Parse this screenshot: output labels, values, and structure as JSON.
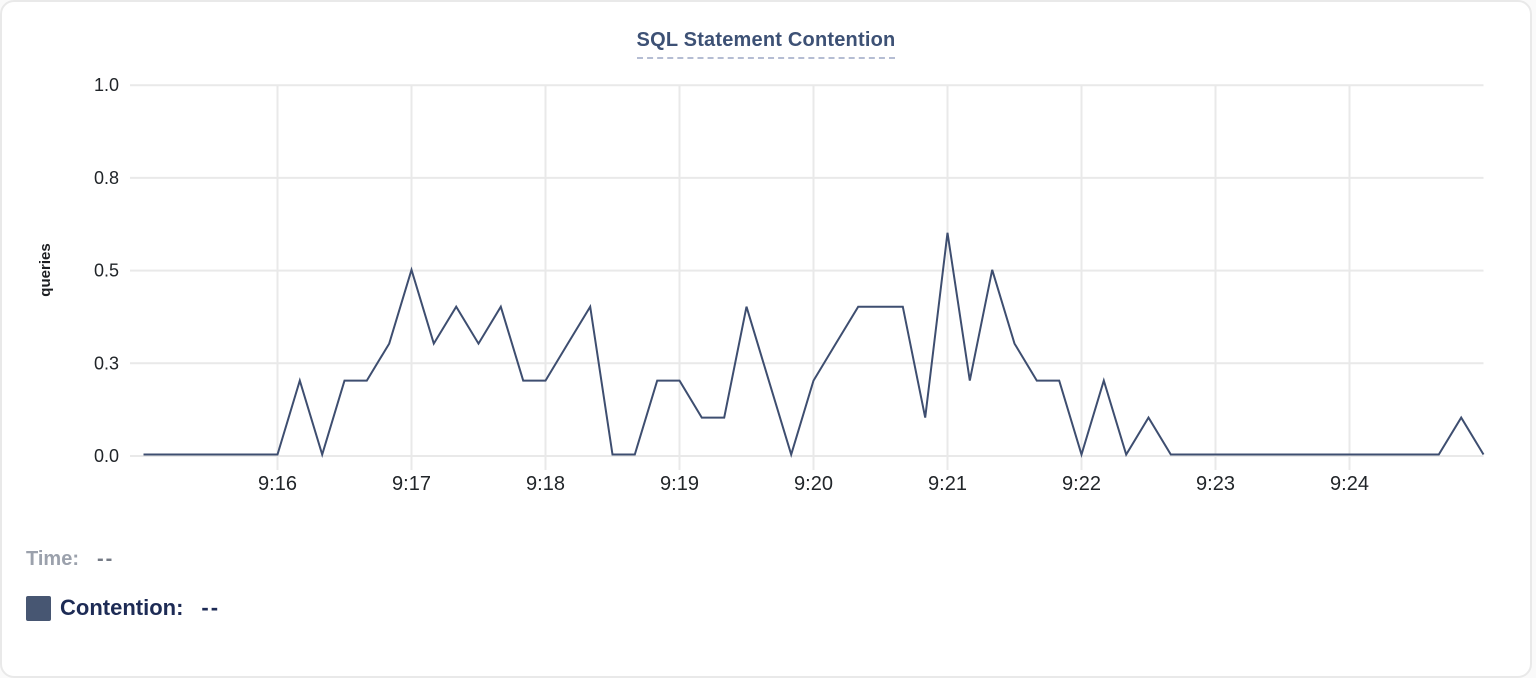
{
  "legend": {
    "time_label": "Time:",
    "time_value": "--",
    "contention_label": "Contention:",
    "contention_value": "--"
  },
  "colors": {
    "line": "#3e4e70",
    "swatch": "#475672",
    "grid": "#e9e9e9",
    "title": "#3d5175",
    "axis_text": "#212529",
    "y_axis_title_text": "#1c1e21",
    "time_label_text": "#9ba1ac",
    "contention_label_text": "#1d2b55"
  },
  "chart_data": {
    "type": "line",
    "title": "SQL Statement Contention",
    "ylabel": "queries",
    "xlabel": "",
    "ylim": [
      0,
      1
    ],
    "grid": true,
    "legend_position": "bottom-left",
    "x_start": "9:15:00",
    "x_end": "9:25:00",
    "sample_interval_seconds": 10,
    "y_ticks": [
      {
        "value": 0,
        "label": "0.0"
      },
      {
        "value": 0.25,
        "label": "0.3"
      },
      {
        "value": 0.5,
        "label": "0.5"
      },
      {
        "value": 0.75,
        "label": "0.8"
      },
      {
        "value": 1,
        "label": "1.0"
      }
    ],
    "x_ticks": [
      "9:16",
      "9:17",
      "9:18",
      "9:19",
      "9:20",
      "9:21",
      "9:22",
      "9:23",
      "9:24"
    ],
    "times": [
      "9:15:00",
      "9:15:10",
      "9:15:20",
      "9:15:30",
      "9:15:40",
      "9:15:50",
      "9:16:00",
      "9:16:10",
      "9:16:20",
      "9:16:30",
      "9:16:40",
      "9:16:50",
      "9:17:00",
      "9:17:10",
      "9:17:20",
      "9:17:30",
      "9:17:40",
      "9:17:50",
      "9:18:00",
      "9:18:10",
      "9:18:20",
      "9:18:30",
      "9:18:40",
      "9:18:50",
      "9:19:00",
      "9:19:10",
      "9:19:20",
      "9:19:30",
      "9:19:40",
      "9:19:50",
      "9:20:00",
      "9:20:10",
      "9:20:20",
      "9:20:30",
      "9:20:40",
      "9:20:50",
      "9:21:00",
      "9:21:10",
      "9:21:20",
      "9:21:30",
      "9:21:40",
      "9:21:50",
      "9:22:00",
      "9:22:10",
      "9:22:20",
      "9:22:30",
      "9:22:40",
      "9:22:50",
      "9:23:00",
      "9:23:10",
      "9:23:20",
      "9:23:30",
      "9:23:40",
      "9:23:50",
      "9:24:00",
      "9:24:10",
      "9:24:20",
      "9:24:30",
      "9:24:40",
      "9:24:50",
      "9:25:00"
    ],
    "series": [
      {
        "name": "Contention",
        "color": "#3e4e70",
        "values": [
          0,
          0,
          0,
          0,
          0,
          0,
          0,
          0.2,
          0,
          0.2,
          0.2,
          0.3,
          0.5,
          0.3,
          0.4,
          0.3,
          0.4,
          0.2,
          0.2,
          0.3,
          0.4,
          0,
          0,
          0.2,
          0.2,
          0.1,
          0.1,
          0.4,
          0.2,
          0,
          0.2,
          0.3,
          0.4,
          0.4,
          0.4,
          0.1,
          0.6,
          0.2,
          0.5,
          0.3,
          0.2,
          0.2,
          0,
          0.2,
          0,
          0.1,
          0,
          0,
          0,
          0,
          0,
          0,
          0,
          0,
          0,
          0,
          0,
          0,
          0,
          0.1,
          0
        ]
      }
    ]
  }
}
